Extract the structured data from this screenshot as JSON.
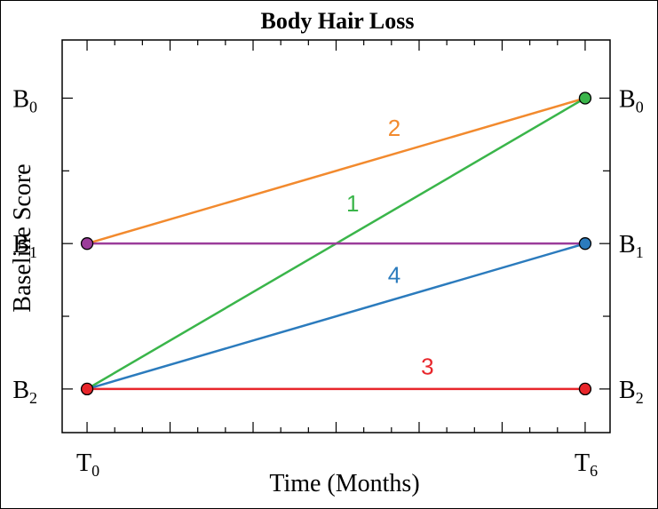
{
  "chart_data": {
    "type": "line",
    "title": "Body Hair Loss",
    "xlabel": "Time (Months)",
    "ylabel": "Baseline Score",
    "x_ticks": [
      {
        "value": 0,
        "base": "T",
        "sub": "0"
      },
      {
        "value": 6,
        "base": "T",
        "sub": "6"
      }
    ],
    "y_ticks_left": [
      {
        "value": 2,
        "base": "B",
        "sub": "0"
      },
      {
        "value": 1,
        "base": "B",
        "sub": "1"
      },
      {
        "value": 0,
        "base": "B",
        "sub": "2"
      }
    ],
    "y_ticks_right": [
      {
        "value": 2,
        "base": "B",
        "sub": "0"
      },
      {
        "value": 1,
        "base": "B",
        "sub": "1"
      },
      {
        "value": 0,
        "base": "B",
        "sub": "2"
      }
    ],
    "xlim": [
      -0.3,
      6.3
    ],
    "ylim": [
      -0.3,
      2.4
    ],
    "grid": false,
    "series": [
      {
        "name": "2",
        "color": "#f28a2e",
        "x": [
          0,
          6
        ],
        "y": [
          1,
          2
        ],
        "label_at": [
          3.7,
          1.74
        ]
      },
      {
        "name": "1",
        "color": "#3ab54a",
        "x": [
          0,
          6
        ],
        "y": [
          0,
          2
        ],
        "label_at": [
          3.2,
          1.22
        ]
      },
      {
        "name": "4",
        "color": "#2b7bbd",
        "x": [
          0,
          6
        ],
        "y": [
          0,
          1
        ],
        "label_at": [
          3.7,
          0.73
        ]
      },
      {
        "name": "3",
        "color": "#e8262b",
        "x": [
          0,
          6
        ],
        "y": [
          0,
          0
        ],
        "label_at": [
          4.1,
          0.1
        ]
      },
      {
        "name": "",
        "color": "#9b3c9a",
        "x": [
          0,
          6
        ],
        "y": [
          1,
          1
        ],
        "label_at": null
      }
    ],
    "points": [
      {
        "x": 0,
        "y": 1,
        "color": "#9b3c9a"
      },
      {
        "x": 0,
        "y": 0,
        "color": "#e8262b"
      },
      {
        "x": 6,
        "y": 2,
        "color": "#3ab54a"
      },
      {
        "x": 6,
        "y": 1,
        "color": "#2b7bbd"
      },
      {
        "x": 6,
        "y": 0,
        "color": "#e8262b"
      }
    ],
    "minor_x_divisions": 18,
    "minor_y_divisions": 8
  }
}
